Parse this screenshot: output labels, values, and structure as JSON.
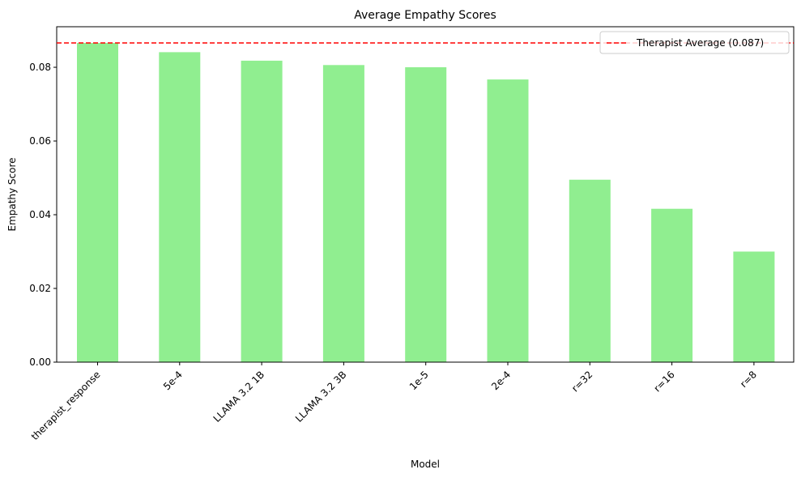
{
  "chart_data": {
    "type": "bar",
    "title": "Average Empathy Scores",
    "xlabel": "Model",
    "ylabel": "Empathy Score",
    "categories": [
      "therapist_response",
      "5e-4",
      "LLAMA 3.2 1B",
      "LLAMA 3.2 3B",
      "1e-5",
      "2e-4",
      "r=32",
      "r=16",
      "r=8"
    ],
    "values": [
      0.0866,
      0.0841,
      0.0818,
      0.0806,
      0.08,
      0.0767,
      0.0495,
      0.0416,
      0.03
    ],
    "ylim": [
      0,
      0.091
    ],
    "yticks": [
      "0.00",
      "0.02",
      "0.04",
      "0.06",
      "0.08"
    ],
    "ytick_values": [
      0,
      0.02,
      0.04,
      0.06,
      0.08
    ],
    "bar_color": "#90ee90",
    "reference_line": {
      "label": "Therapist Average (0.087)",
      "value": 0.0866,
      "color": "#ff0000",
      "style": "dashed"
    },
    "legend_position": "top-right",
    "grid": false
  }
}
